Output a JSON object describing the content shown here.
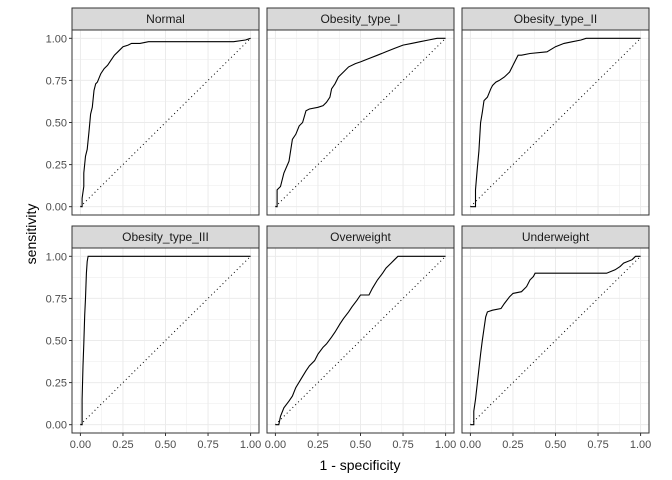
{
  "chart_data": {
    "type": "line",
    "xlabel": "1 - specificity",
    "ylabel": "sensitivity",
    "xlim": [
      0,
      1
    ],
    "ylim": [
      0,
      1
    ],
    "x_ticks": [
      "0.00",
      "0.25",
      "0.50",
      "0.75",
      "1.00"
    ],
    "y_ticks": [
      "0.00",
      "0.25",
      "0.50",
      "0.75",
      "1.00"
    ],
    "grid": true,
    "reference_line": "diagonal dotted y = x",
    "colors": {
      "panel_background": "#ffffff",
      "grid": "#ebebeb",
      "strip_background": "#d9d9d9",
      "border": "#333333",
      "curve": "#000000"
    },
    "panels": [
      {
        "label": "Normal",
        "points": [
          [
            0,
            0
          ],
          [
            0.01,
            0
          ],
          [
            0.01,
            0.05
          ],
          [
            0.02,
            0.12
          ],
          [
            0.02,
            0.2
          ],
          [
            0.03,
            0.3
          ],
          [
            0.04,
            0.34
          ],
          [
            0.05,
            0.44
          ],
          [
            0.06,
            0.55
          ],
          [
            0.07,
            0.59
          ],
          [
            0.08,
            0.69
          ],
          [
            0.09,
            0.73
          ],
          [
            0.1,
            0.74
          ],
          [
            0.12,
            0.79
          ],
          [
            0.14,
            0.82
          ],
          [
            0.16,
            0.84
          ],
          [
            0.18,
            0.87
          ],
          [
            0.2,
            0.9
          ],
          [
            0.22,
            0.92
          ],
          [
            0.25,
            0.95
          ],
          [
            0.28,
            0.96
          ],
          [
            0.3,
            0.97
          ],
          [
            0.35,
            0.97
          ],
          [
            0.4,
            0.98
          ],
          [
            0.5,
            0.98
          ],
          [
            0.6,
            0.98
          ],
          [
            0.7,
            0.98
          ],
          [
            0.8,
            0.98
          ],
          [
            0.9,
            0.98
          ],
          [
            0.97,
            0.99
          ],
          [
            1,
            1
          ]
        ]
      },
      {
        "label": "Obesity_type_I",
        "points": [
          [
            0,
            0
          ],
          [
            0.01,
            0
          ],
          [
            0.01,
            0.1
          ],
          [
            0.03,
            0.12
          ],
          [
            0.05,
            0.2
          ],
          [
            0.08,
            0.27
          ],
          [
            0.1,
            0.4
          ],
          [
            0.12,
            0.43
          ],
          [
            0.14,
            0.48
          ],
          [
            0.16,
            0.5
          ],
          [
            0.18,
            0.57
          ],
          [
            0.2,
            0.58
          ],
          [
            0.25,
            0.59
          ],
          [
            0.28,
            0.6
          ],
          [
            0.3,
            0.62
          ],
          [
            0.32,
            0.65
          ],
          [
            0.33,
            0.7
          ],
          [
            0.35,
            0.73
          ],
          [
            0.37,
            0.77
          ],
          [
            0.4,
            0.8
          ],
          [
            0.43,
            0.83
          ],
          [
            0.47,
            0.85
          ],
          [
            0.5,
            0.86
          ],
          [
            0.55,
            0.88
          ],
          [
            0.6,
            0.9
          ],
          [
            0.65,
            0.92
          ],
          [
            0.7,
            0.94
          ],
          [
            0.75,
            0.96
          ],
          [
            0.8,
            0.97
          ],
          [
            0.85,
            0.98
          ],
          [
            0.9,
            0.99
          ],
          [
            0.95,
            1
          ],
          [
            1,
            1
          ]
        ]
      },
      {
        "label": "Obesity_type_II",
        "points": [
          [
            0,
            0
          ],
          [
            0.03,
            0
          ],
          [
            0.03,
            0.1
          ],
          [
            0.04,
            0.22
          ],
          [
            0.05,
            0.33
          ],
          [
            0.06,
            0.5
          ],
          [
            0.07,
            0.56
          ],
          [
            0.08,
            0.63
          ],
          [
            0.1,
            0.65
          ],
          [
            0.12,
            0.7
          ],
          [
            0.13,
            0.72
          ],
          [
            0.15,
            0.74
          ],
          [
            0.17,
            0.75
          ],
          [
            0.2,
            0.77
          ],
          [
            0.23,
            0.8
          ],
          [
            0.25,
            0.84
          ],
          [
            0.27,
            0.88
          ],
          [
            0.28,
            0.9
          ],
          [
            0.3,
            0.9
          ],
          [
            0.35,
            0.91
          ],
          [
            0.45,
            0.92
          ],
          [
            0.5,
            0.95
          ],
          [
            0.55,
            0.97
          ],
          [
            0.6,
            0.98
          ],
          [
            0.65,
            0.99
          ],
          [
            0.68,
            1
          ],
          [
            1,
            1
          ]
        ]
      },
      {
        "label": "Obesity_type_III",
        "points": [
          [
            0,
            0
          ],
          [
            0.01,
            0
          ],
          [
            0.01,
            0.15
          ],
          [
            0.015,
            0.35
          ],
          [
            0.02,
            0.48
          ],
          [
            0.025,
            0.65
          ],
          [
            0.03,
            0.75
          ],
          [
            0.035,
            0.9
          ],
          [
            0.04,
            0.97
          ],
          [
            0.045,
            1
          ],
          [
            1,
            1
          ]
        ]
      },
      {
        "label": "Overweight",
        "points": [
          [
            0,
            0
          ],
          [
            0.02,
            0
          ],
          [
            0.03,
            0.05
          ],
          [
            0.05,
            0.1
          ],
          [
            0.08,
            0.14
          ],
          [
            0.1,
            0.17
          ],
          [
            0.12,
            0.22
          ],
          [
            0.15,
            0.27
          ],
          [
            0.18,
            0.32
          ],
          [
            0.2,
            0.35
          ],
          [
            0.23,
            0.38
          ],
          [
            0.25,
            0.42
          ],
          [
            0.28,
            0.46
          ],
          [
            0.3,
            0.48
          ],
          [
            0.33,
            0.52
          ],
          [
            0.35,
            0.55
          ],
          [
            0.38,
            0.6
          ],
          [
            0.4,
            0.63
          ],
          [
            0.43,
            0.67
          ],
          [
            0.45,
            0.7
          ],
          [
            0.48,
            0.74
          ],
          [
            0.5,
            0.77
          ],
          [
            0.52,
            0.77
          ],
          [
            0.55,
            0.77
          ],
          [
            0.57,
            0.81
          ],
          [
            0.6,
            0.86
          ],
          [
            0.63,
            0.9
          ],
          [
            0.65,
            0.93
          ],
          [
            0.68,
            0.96
          ],
          [
            0.7,
            0.98
          ],
          [
            0.72,
            1
          ],
          [
            1,
            1
          ]
        ]
      },
      {
        "label": "Underweight",
        "points": [
          [
            0,
            0
          ],
          [
            0.02,
            0
          ],
          [
            0.02,
            0.08
          ],
          [
            0.03,
            0.15
          ],
          [
            0.04,
            0.24
          ],
          [
            0.05,
            0.33
          ],
          [
            0.06,
            0.42
          ],
          [
            0.07,
            0.5
          ],
          [
            0.08,
            0.57
          ],
          [
            0.09,
            0.64
          ],
          [
            0.1,
            0.67
          ],
          [
            0.13,
            0.68
          ],
          [
            0.18,
            0.69
          ],
          [
            0.2,
            0.72
          ],
          [
            0.23,
            0.76
          ],
          [
            0.25,
            0.78
          ],
          [
            0.3,
            0.79
          ],
          [
            0.33,
            0.82
          ],
          [
            0.35,
            0.86
          ],
          [
            0.37,
            0.88
          ],
          [
            0.38,
            0.9
          ],
          [
            0.5,
            0.9
          ],
          [
            0.6,
            0.9
          ],
          [
            0.7,
            0.9
          ],
          [
            0.8,
            0.9
          ],
          [
            0.85,
            0.92
          ],
          [
            0.88,
            0.94
          ],
          [
            0.9,
            0.96
          ],
          [
            0.95,
            0.98
          ],
          [
            0.97,
            1
          ],
          [
            1,
            1
          ]
        ]
      }
    ]
  }
}
